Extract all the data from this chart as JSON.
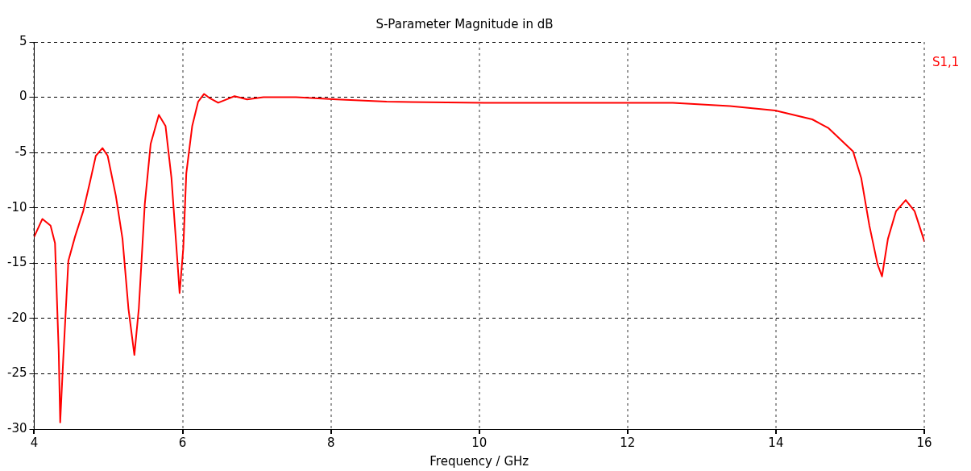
{
  "chart_data": {
    "type": "line",
    "title": "S-Parameter Magnitude in dB",
    "xlabel": "Frequency / GHz",
    "xlim": [
      4,
      16
    ],
    "xticks": [
      4,
      6,
      8,
      10,
      12,
      14,
      16
    ],
    "ylim": [
      -30,
      5
    ],
    "yticks": [
      -30,
      -25,
      -20,
      -15,
      -10,
      -5,
      0,
      5
    ],
    "grid": true,
    "legend": "top right",
    "marker": "none",
    "line_style": "solid",
    "series": [
      {
        "name": "S1,1",
        "color": "#ff0000",
        "x": [
          4.0,
          4.11,
          4.22,
          4.28,
          4.33,
          4.35,
          4.39,
          4.46,
          4.55,
          4.66,
          4.75,
          4.83,
          4.92,
          4.99,
          5.1,
          5.19,
          5.27,
          5.35,
          5.41,
          5.49,
          5.57,
          5.68,
          5.77,
          5.85,
          5.93,
          5.96,
          6.01,
          6.05,
          6.13,
          6.21,
          6.29,
          6.37,
          6.48,
          6.59,
          6.7,
          6.87,
          7.09,
          7.53,
          8.08,
          8.75,
          10.07,
          11.73,
          12.61,
          13.38,
          13.99,
          14.49,
          14.71,
          15.04,
          15.15,
          15.26,
          15.37,
          15.43,
          15.51,
          15.62,
          15.75,
          15.87,
          16.0
        ],
        "values": [
          -12.6,
          -11.0,
          -11.6,
          -13.2,
          -23,
          -29.4,
          -23.8,
          -14.8,
          -12.6,
          -10.3,
          -7.7,
          -5.3,
          -4.6,
          -5.3,
          -8.9,
          -12.8,
          -19.1,
          -23.3,
          -19.1,
          -9.7,
          -4.2,
          -1.6,
          -2.6,
          -7.3,
          -14.8,
          -17.7,
          -13.6,
          -6.9,
          -2.6,
          -0.4,
          0.3,
          -0.1,
          -0.5,
          -0.2,
          0.1,
          -0.2,
          0,
          0,
          -0.2,
          -0.4,
          -0.5,
          -0.5,
          -0.5,
          -0.8,
          -1.2,
          -2.0,
          -2.8,
          -4.9,
          -7.3,
          -11.6,
          -15.1,
          -16.2,
          -12.8,
          -10.3,
          -9.3,
          -10.3,
          -13.0
        ]
      }
    ]
  }
}
